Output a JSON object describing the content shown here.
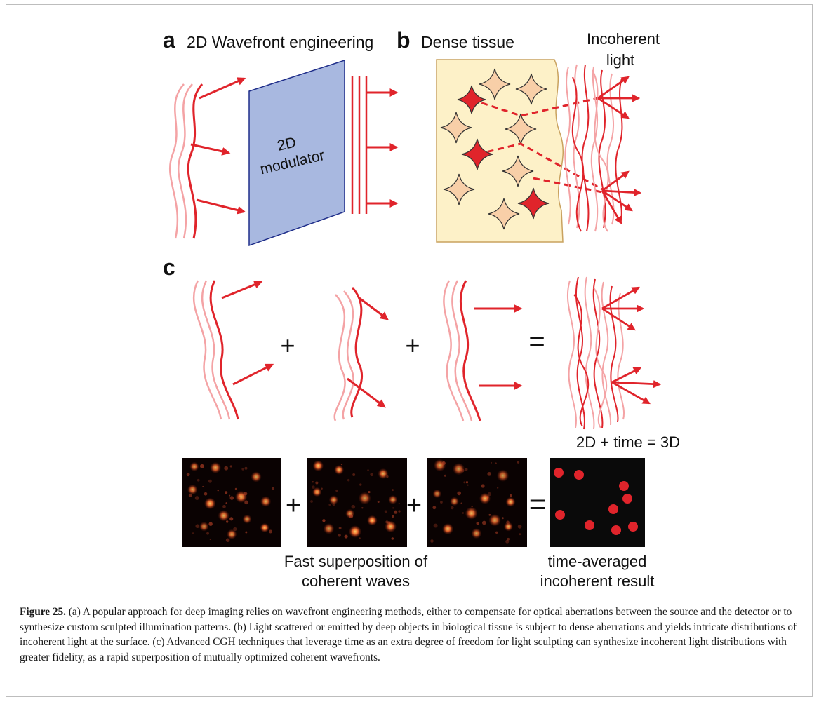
{
  "panels": {
    "a": {
      "letter": "a",
      "title": "2D Wavefront engineering",
      "modulator_line1": "2D",
      "modulator_line2": "modulator"
    },
    "b": {
      "letter": "b",
      "title": "Dense tissue",
      "incoherent_line1": "Incoherent",
      "incoherent_line2": "light"
    },
    "c": {
      "letter": "c",
      "plus": "+",
      "equals": "=",
      "result_label": "2D + time = 3D",
      "left_caption_line1": "Fast superposition of",
      "left_caption_line2": "coherent waves",
      "right_caption_line1": "time-averaged",
      "right_caption_line2": "incoherent result"
    }
  },
  "caption": {
    "lead": "Figure 25.",
    "text": " (a) A popular approach for deep imaging relies on wavefront engineering methods, either to compensate for optical aberrations between the source and the detector or to synthesize custom sculpted illumination patterns. (b) Light scattered or emitted by deep objects in biological tissue is subject to dense aberrations and yields intricate distributions of incoherent light at the surface. (c) Advanced CGH techniques that leverage time as an extra degree of freedom for light sculpting can synthesize incoherent light distributions with greater fidelity, as a rapid superposition of mutually optimized coherent wavefronts."
  },
  "colors": {
    "red": "#e0242b",
    "light_red": "#f4a3a5",
    "modulator_fill": "#a8b8e0",
    "modulator_stroke": "#1f2e8a",
    "tissue_fill": "#fdf1c8",
    "tissue_stroke": "#c9a25f",
    "star_fill": "#f8cfa8",
    "star_red": "#e0242b"
  }
}
